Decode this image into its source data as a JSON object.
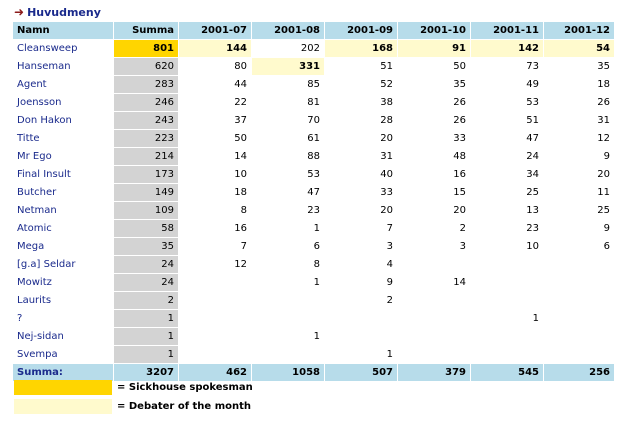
{
  "nav": {
    "back_label": "Huvudmeny"
  },
  "table": {
    "headers": [
      "Namn",
      "Summa",
      "2001-07",
      "2001-08",
      "2001-09",
      "2001-10",
      "2001-11",
      "2001-12"
    ],
    "rows": [
      {
        "name": "Cleansweep",
        "values": [
          "801",
          "144",
          "202",
          "168",
          "91",
          "142",
          "54"
        ],
        "hl": [
          "spokes",
          "debater",
          "",
          "debater",
          "debater",
          "debater",
          "debater"
        ]
      },
      {
        "name": "Hanseman",
        "values": [
          "620",
          "80",
          "331",
          "51",
          "50",
          "73",
          "35"
        ],
        "hl": [
          "",
          "",
          "debater",
          "",
          "",
          "",
          ""
        ]
      },
      {
        "name": "Agent",
        "values": [
          "283",
          "44",
          "85",
          "52",
          "35",
          "49",
          "18"
        ]
      },
      {
        "name": "Joensson",
        "values": [
          "246",
          "22",
          "81",
          "38",
          "26",
          "53",
          "26"
        ]
      },
      {
        "name": "Don Hakon",
        "values": [
          "243",
          "37",
          "70",
          "28",
          "26",
          "51",
          "31"
        ]
      },
      {
        "name": "Titte",
        "values": [
          "223",
          "50",
          "61",
          "20",
          "33",
          "47",
          "12"
        ]
      },
      {
        "name": "Mr Ego",
        "values": [
          "214",
          "14",
          "88",
          "31",
          "48",
          "24",
          "9"
        ]
      },
      {
        "name": "Final Insult",
        "values": [
          "173",
          "10",
          "53",
          "40",
          "16",
          "34",
          "20"
        ]
      },
      {
        "name": "Butcher",
        "values": [
          "149",
          "18",
          "47",
          "33",
          "15",
          "25",
          "11"
        ]
      },
      {
        "name": "Netman",
        "values": [
          "109",
          "8",
          "23",
          "20",
          "20",
          "13",
          "25"
        ]
      },
      {
        "name": "Atomic",
        "values": [
          "58",
          "16",
          "1",
          "7",
          "2",
          "23",
          "9"
        ]
      },
      {
        "name": "Mega",
        "values": [
          "35",
          "7",
          "6",
          "3",
          "3",
          "10",
          "6"
        ]
      },
      {
        "name": "[g.a] Seldar",
        "values": [
          "24",
          "12",
          "8",
          "4",
          "",
          "",
          ""
        ]
      },
      {
        "name": "Mowitz",
        "values": [
          "24",
          "",
          "1",
          "9",
          "14",
          "",
          ""
        ]
      },
      {
        "name": "Laurits",
        "values": [
          "2",
          "",
          "",
          "2",
          "",
          "",
          ""
        ]
      },
      {
        "name": "?",
        "values": [
          "1",
          "",
          "",
          "",
          "",
          "1",
          ""
        ]
      },
      {
        "name": "Nej-sidan",
        "values": [
          "1",
          "",
          "1",
          "",
          "",
          "",
          ""
        ]
      },
      {
        "name": "Svempa",
        "values": [
          "1",
          "",
          "",
          "1",
          "",
          "",
          ""
        ]
      }
    ],
    "footer": {
      "label": "Summa:",
      "values": [
        "3207",
        "462",
        "1058",
        "507",
        "379",
        "545",
        "256"
      ]
    }
  },
  "legend": [
    {
      "color": "#ffd500",
      "label": "= Sickhouse spokesman"
    },
    {
      "color": "#fffacd",
      "label": "= Debater of the month"
    }
  ]
}
